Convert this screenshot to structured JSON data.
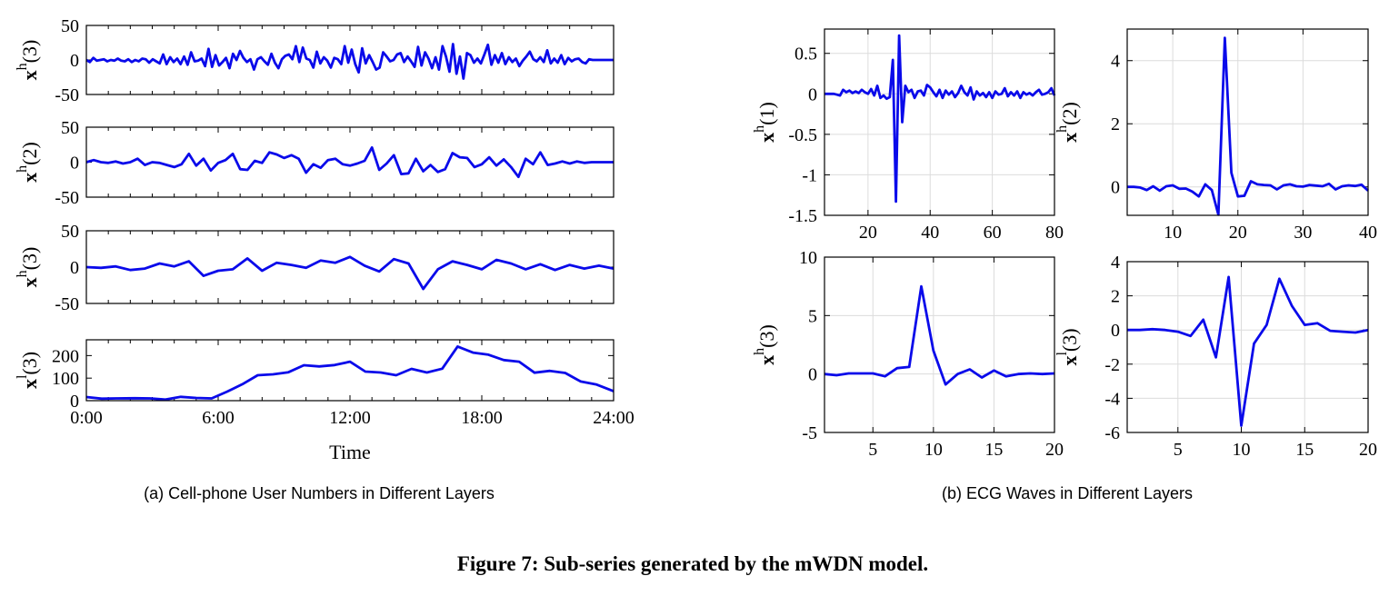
{
  "caption": "Figure 7: Sub-series generated by the mWDN model.",
  "subcaption_a": "(a)  Cell-phone User Numbers in Different Layers",
  "subcaption_b": "(b)  ECG Waves in Different Layers",
  "chart_data": [
    {
      "type": "line",
      "id": "a1",
      "ylabel_base": "x",
      "ylabel_sup": "h",
      "ylabel_arg": "(3)",
      "ylim": [
        -50,
        50
      ],
      "xlim": [
        0,
        24
      ],
      "yticks": [
        -50,
        0,
        50
      ],
      "ytick_labels": [
        "-50",
        "0",
        "50"
      ],
      "xticks": [
        0,
        6,
        12,
        18,
        24
      ],
      "xtick_labels": [],
      "grid": false,
      "color": "#0a0aea",
      "y": [
        0,
        -3,
        3,
        -1,
        0,
        1,
        -2,
        0,
        -1,
        2,
        -1,
        -2,
        1,
        -3,
        0,
        -2,
        2,
        1,
        -4,
        1,
        -2,
        -5,
        8,
        -6,
        4,
        -3,
        2,
        -6,
        5,
        -7,
        11,
        -2,
        -1,
        2,
        -9,
        16,
        -10,
        7,
        -8,
        -3,
        3,
        -12,
        9,
        0,
        13,
        3,
        -3,
        1,
        -14,
        1,
        4,
        -2,
        -7,
        9,
        -4,
        -12,
        1,
        6,
        8,
        1,
        20,
        -3,
        18,
        2,
        0,
        -11,
        12,
        -5,
        4,
        -1,
        -11,
        3,
        1,
        -6,
        20,
        -4,
        15,
        -6,
        -18,
        17,
        -5,
        7,
        -3,
        -14,
        -11,
        11,
        5,
        -2,
        0,
        8,
        10,
        -3,
        5,
        -2,
        -10,
        19,
        -8,
        11,
        2,
        -12,
        4,
        -14,
        20,
        5,
        -17,
        23,
        -20,
        5,
        -27,
        10,
        7,
        -4,
        2,
        -5,
        8,
        22,
        -7,
        7,
        -4,
        10,
        -6,
        4,
        -3,
        2,
        -9,
        -1,
        5,
        12,
        1,
        -2,
        4,
        -3,
        14,
        -5,
        2,
        -4,
        7,
        -6,
        3,
        -2,
        1,
        2,
        -3,
        -5,
        1,
        0,
        0,
        0,
        0,
        0,
        0,
        0
      ]
    },
    {
      "type": "line",
      "id": "a2",
      "ylabel_base": "x",
      "ylabel_sup": "h",
      "ylabel_arg": "(2)",
      "ylim": [
        -50,
        50
      ],
      "xlim": [
        0,
        24
      ],
      "yticks": [
        -50,
        0,
        50
      ],
      "ytick_labels": [
        "-50",
        "0",
        "50"
      ],
      "xticks": [
        0,
        6,
        12,
        18,
        24
      ],
      "xtick_labels": [],
      "grid": false,
      "color": "#0a0aea",
      "y": [
        0,
        3,
        0,
        -1,
        1,
        -2,
        0,
        5,
        -4,
        0,
        -1,
        -4,
        -7,
        -3,
        12,
        -5,
        5,
        -12,
        -1,
        3,
        12,
        -10,
        -11,
        2,
        -1,
        14,
        11,
        6,
        10,
        5,
        -15,
        -3,
        -8,
        3,
        5,
        -3,
        -5,
        -2,
        2,
        21,
        -11,
        -2,
        10,
        -17,
        -16,
        5,
        -13,
        -4,
        -14,
        -10,
        13,
        7,
        6,
        -7,
        -3,
        7,
        -5,
        4,
        -7,
        -21,
        5,
        -3,
        14,
        -4,
        -2,
        1,
        -2,
        1,
        -1,
        0,
        0,
        0,
        0
      ]
    },
    {
      "type": "line",
      "id": "a3",
      "ylabel_base": "x",
      "ylabel_sup": "h",
      "ylabel_arg": "(3)",
      "ylim": [
        -50,
        50
      ],
      "xlim": [
        0,
        24
      ],
      "yticks": [
        -50,
        0,
        50
      ],
      "ytick_labels": [
        "-50",
        "0",
        "50"
      ],
      "xticks": [
        0,
        6,
        12,
        18,
        24
      ],
      "xtick_labels": [],
      "grid": false,
      "color": "#0a0aea",
      "y": [
        0,
        -1,
        1,
        -4,
        -2,
        5,
        1,
        8,
        -12,
        -5,
        -3,
        12,
        -5,
        6,
        3,
        -1,
        9,
        6,
        14,
        2,
        -6,
        11,
        5,
        -30,
        -3,
        8,
        3,
        -3,
        10,
        5,
        -3,
        4,
        -4,
        3,
        -2,
        2,
        -2
      ]
    },
    {
      "type": "line",
      "id": "a4",
      "ylabel_base": "x",
      "ylabel_sup": "l",
      "ylabel_arg": "(3)",
      "ylim": [
        0,
        270
      ],
      "xlim": [
        0,
        24
      ],
      "yticks": [
        0,
        100,
        200
      ],
      "ytick_labels": [
        "0",
        "100",
        "200"
      ],
      "xticks": [
        0,
        6,
        12,
        18,
        24
      ],
      "xtick_labels": [
        "0:00",
        "6:00",
        "12:00",
        "18:00",
        "24:00"
      ],
      "xlabel": "Time",
      "grid": false,
      "color": "#0a0aea",
      "x": [
        0,
        0.7,
        1.4,
        2.2,
        2.9,
        3.6,
        4.3,
        5.0,
        5.7,
        6.4,
        7.1,
        7.8,
        8.5,
        9.2,
        9.9,
        10.6,
        11.3,
        12.0,
        12.7,
        13.4,
        14.1,
        14.8,
        15.5,
        16.2,
        16.9,
        17.6,
        18.3,
        19.0,
        19.7,
        20.4,
        21.1,
        21.8,
        22.5,
        23.2,
        24.0
      ],
      "y": [
        16,
        9,
        10,
        11,
        10,
        5,
        17,
        12,
        10,
        40,
        73,
        113,
        117,
        126,
        157,
        152,
        158,
        173,
        129,
        125,
        113,
        141,
        125,
        142,
        240,
        213,
        204,
        180,
        173,
        124,
        132,
        123,
        85,
        72,
        42
      ]
    },
    {
      "type": "line",
      "id": "b1",
      "ylabel_base": "x",
      "ylabel_sup": "h",
      "ylabel_arg": "(1)",
      "ylim": [
        -1.5,
        0.8
      ],
      "xlim": [
        6,
        80
      ],
      "yticks": [
        -1.5,
        -1,
        -0.5,
        0,
        0.5
      ],
      "ytick_labels": [
        "-1.5",
        "-1",
        "-0.5",
        "0",
        "0.5"
      ],
      "xticks": [
        20,
        40,
        60,
        80
      ],
      "xtick_labels": [
        "20",
        "40",
        "60",
        "80"
      ],
      "grid": true,
      "color": "#0a0aea",
      "x0": 6,
      "y": [
        0,
        0,
        0,
        0,
        -0.01,
        -0.02,
        0.05,
        0.02,
        0.04,
        0.01,
        0.03,
        0.01,
        0.05,
        0.02,
        0.0,
        0.06,
        -0.02,
        0.1,
        -0.05,
        -0.02,
        -0.06,
        -0.04,
        0.42,
        -1.33,
        0.72,
        -0.35,
        0.1,
        0.02,
        0.05,
        -0.05,
        0.03,
        0.04,
        -0.02,
        0.11,
        0.08,
        0.02,
        -0.03,
        0.05,
        -0.05,
        0.04,
        -0.01,
        0.03,
        -0.04,
        0.01,
        0.1,
        0.02,
        -0.02,
        0.08,
        -0.07,
        0.03,
        -0.02,
        0.01,
        -0.04,
        0.02,
        -0.05,
        0.03,
        -0.01,
        0.0,
        0.07,
        -0.03,
        0.02,
        -0.02,
        0.03,
        -0.05,
        0.02,
        -0.01,
        0.01,
        -0.02,
        0.02,
        0.05,
        -0.01,
        0.0,
        0.02,
        0.07,
        -0.02
      ]
    },
    {
      "type": "line",
      "id": "b2",
      "ylabel_base": "x",
      "ylabel_sup": "h",
      "ylabel_arg": "(2)",
      "ylim": [
        -0.9,
        5.0
      ],
      "xlim": [
        3,
        40
      ],
      "yticks": [
        0,
        2,
        4
      ],
      "ytick_labels": [
        "0",
        "2",
        "4"
      ],
      "xticks": [
        10,
        20,
        30,
        40
      ],
      "xtick_labels": [
        "10",
        "20",
        "30",
        "40"
      ],
      "grid": true,
      "color": "#0a0aea",
      "x0": 3,
      "y": [
        0,
        0,
        -0.02,
        -0.1,
        0.02,
        -0.12,
        0.02,
        0.05,
        -0.06,
        -0.05,
        -0.15,
        -0.3,
        0.08,
        -0.1,
        -0.88,
        4.72,
        0.45,
        -0.3,
        -0.28,
        0.18,
        0.08,
        0.06,
        0.05,
        -0.08,
        0.05,
        0.08,
        0.02,
        0.01,
        0.06,
        0.04,
        0.02,
        0.1,
        -0.08,
        0.02,
        0.05,
        0.03,
        0.07,
        -0.12
      ]
    },
    {
      "type": "line",
      "id": "b3",
      "ylabel_base": "x",
      "ylabel_sup": "h",
      "ylabel_arg": "(3)",
      "ylim": [
        -5,
        10
      ],
      "xlim": [
        1,
        20
      ],
      "yticks": [
        -5,
        0,
        5,
        10
      ],
      "ytick_labels": [
        "-5",
        "0",
        "5",
        "10"
      ],
      "xticks": [
        5,
        10,
        15,
        20
      ],
      "xtick_labels": [
        "5",
        "10",
        "15",
        "20"
      ],
      "grid": true,
      "color": "#0a0aea",
      "x": [
        1,
        2,
        3,
        4,
        5,
        6,
        7,
        8,
        9,
        10,
        11,
        12,
        13,
        14,
        15,
        16,
        17,
        18,
        19,
        20
      ],
      "y": [
        0.0,
        -0.1,
        0.05,
        0.05,
        0.05,
        -0.2,
        0.5,
        0.6,
        7.5,
        2.0,
        -0.9,
        0.0,
        0.4,
        -0.3,
        0.3,
        -0.2,
        0.0,
        0.05,
        0.0,
        0.05
      ]
    },
    {
      "type": "line",
      "id": "b4",
      "ylabel_base": "x",
      "ylabel_sup": "l",
      "ylabel_arg": "(3)",
      "ylim": [
        -6,
        4
      ],
      "xlim": [
        1,
        20
      ],
      "yticks": [
        -6,
        -4,
        -2,
        0,
        2,
        4
      ],
      "ytick_labels": [
        "-6",
        "-4",
        "-2",
        "0",
        "2",
        "4"
      ],
      "xticks": [
        5,
        10,
        15,
        20
      ],
      "xtick_labels": [
        "5",
        "10",
        "15",
        "20"
      ],
      "grid": true,
      "color": "#0a0aea",
      "x": [
        1,
        2,
        3,
        4,
        5,
        6,
        7,
        8,
        9,
        10,
        11,
        12,
        13,
        14,
        15,
        16,
        17,
        18,
        19,
        20
      ],
      "y": [
        0.0,
        0.0,
        0.05,
        0.0,
        -0.1,
        -0.35,
        0.6,
        -1.6,
        3.1,
        -5.6,
        -0.8,
        0.3,
        3.0,
        1.4,
        0.3,
        0.4,
        -0.05,
        -0.1,
        -0.15,
        0.0
      ]
    }
  ]
}
